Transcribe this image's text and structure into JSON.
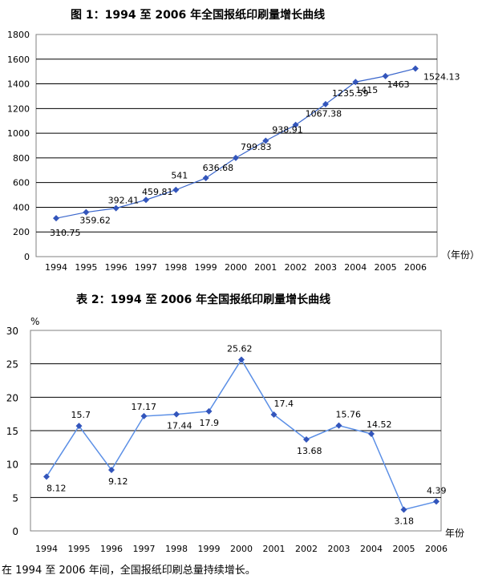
{
  "chart_data": [
    {
      "type": "line",
      "title": "图 1：1994 至 2006 年全国报纸印刷量增长曲线",
      "categories": [
        "1994",
        "1995",
        "1996",
        "1997",
        "1998",
        "1999",
        "2000",
        "2001",
        "2002",
        "2003",
        "2004",
        "2005",
        "2006"
      ],
      "values": [
        310.75,
        359.62,
        392.41,
        459.81,
        541,
        636.68,
        799.83,
        938.91,
        1067.38,
        1235.59,
        1415,
        1463,
        1524.13
      ],
      "value_labels": [
        "310.75",
        "359.62",
        "392.41",
        "459.81",
        "541",
        "636.68",
        "799.83",
        "938.91",
        "1067.38",
        "1235.59",
        "1415",
        "1463",
        "1524.13"
      ],
      "xunit_label": "（年份）",
      "ylabel": "",
      "ylim": [
        0,
        1800
      ],
      "yticks": [
        "0",
        "200",
        "400",
        "600",
        "800",
        "1000",
        "1200",
        "1400",
        "1600",
        "1800"
      ],
      "grid": true,
      "line_color": "#3a66cc",
      "marker_color": "#3355bb"
    },
    {
      "type": "line",
      "title": "表 2：1994 至 2006 年全国报纸印刷量增长曲线",
      "categories": [
        "1994",
        "1995",
        "1996",
        "1997",
        "1998",
        "1999",
        "2000",
        "2001",
        "2002",
        "2003",
        "2004",
        "2005",
        "2006"
      ],
      "values": [
        8.12,
        15.7,
        9.12,
        17.17,
        17.44,
        17.9,
        25.62,
        17.4,
        13.68,
        15.76,
        14.52,
        3.18,
        4.39
      ],
      "value_labels": [
        "8.12",
        "15.7",
        "9.12",
        "17.17",
        "17.44",
        "17.9",
        "25.62",
        "17.4",
        "13.68",
        "15.76",
        "14.52",
        "3.18",
        "4.39"
      ],
      "xunit_label": "年份",
      "yunit_label": "%",
      "ylim": [
        0,
        30
      ],
      "yticks": [
        "0",
        "5",
        "10",
        "15",
        "20",
        "25",
        "30"
      ],
      "grid": true,
      "line_color": "#5b8fe6",
      "marker_color": "#3355bb"
    }
  ],
  "footer_text": "在 1994 至 2006 年间，全国报纸印刷总量持续增长。"
}
